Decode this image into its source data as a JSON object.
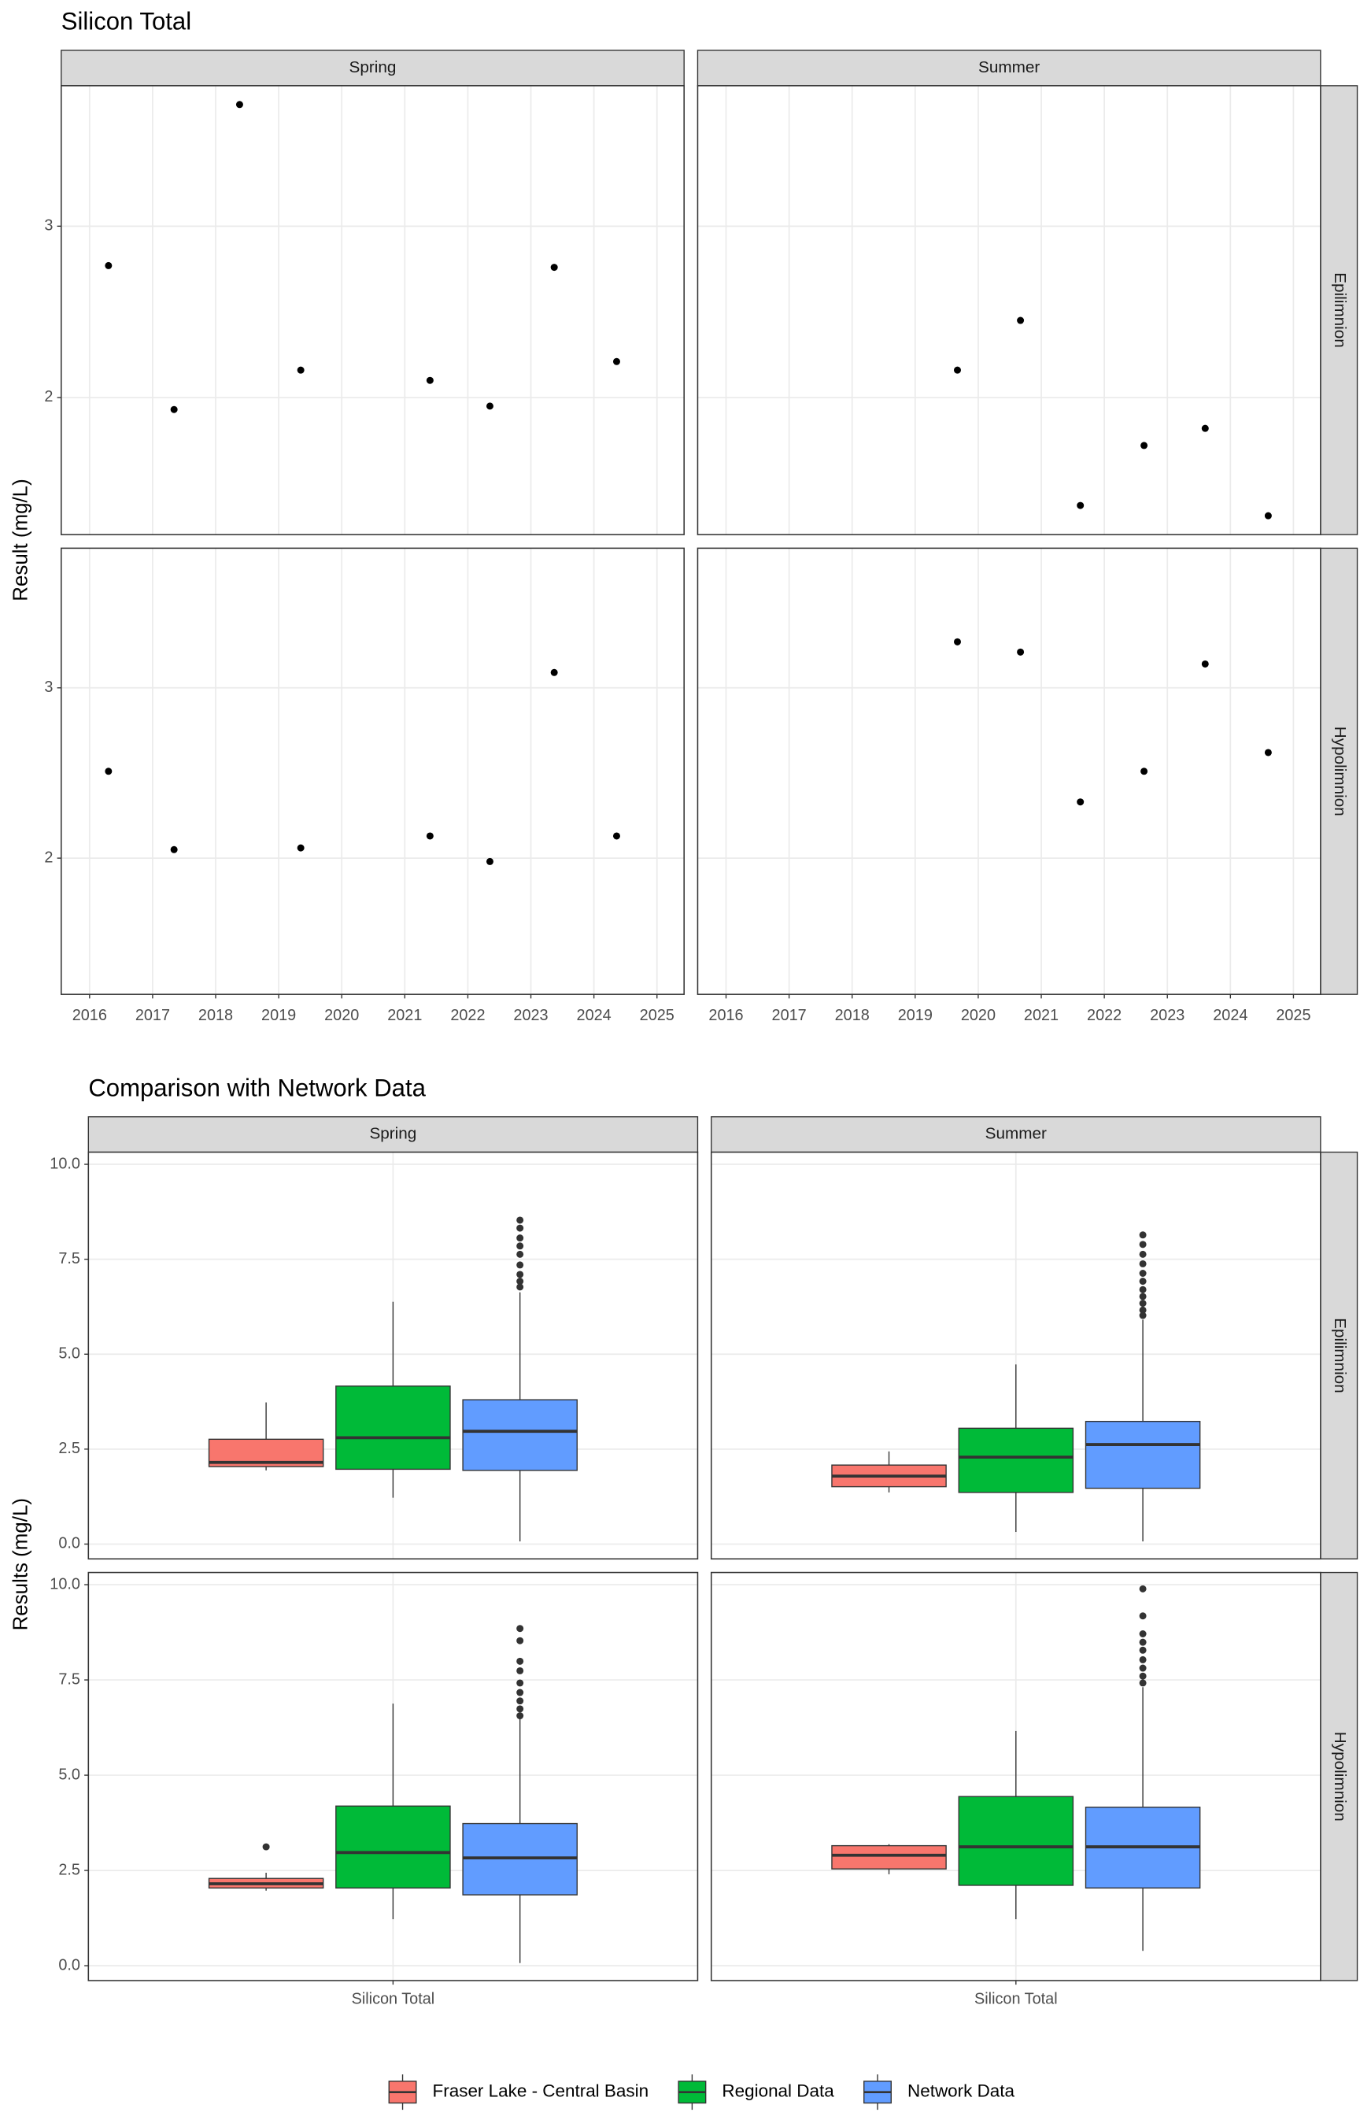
{
  "chart_data": [
    {
      "type": "scatter",
      "title": "Silicon Total",
      "y_label": "Result (mg/L)",
      "columns": [
        "Spring",
        "Summer"
      ],
      "rows": [
        "Epilimnion",
        "Hypolimnion"
      ],
      "color": "#000000",
      "xlim": [
        2015.55,
        2025.43
      ],
      "xticks": [
        2016,
        2017,
        2018,
        2019,
        2020,
        2021,
        2022,
        2023,
        2024,
        2025
      ],
      "ylim": [
        1.2,
        3.82
      ],
      "yticks": [
        2,
        3
      ],
      "grid": true,
      "panels": [
        {
          "x": [
            2016.3,
            2017.34,
            2018.38,
            2019.35,
            2021.4,
            2022.35,
            2023.37,
            2024.36
          ],
          "values": [
            2.77,
            1.93,
            3.71,
            2.16,
            2.1,
            1.95,
            2.76,
            2.21
          ]
        },
        {
          "x": [
            2019.67,
            2020.67,
            2021.62,
            2022.63,
            2023.6,
            2024.6
          ],
          "values": [
            2.16,
            2.45,
            1.37,
            1.72,
            1.82,
            1.31
          ]
        },
        {
          "x": [
            2016.3,
            2017.34,
            2019.35,
            2021.4,
            2022.35,
            2023.37,
            2024.36
          ],
          "values": [
            2.51,
            2.05,
            2.06,
            2.13,
            1.98,
            3.09,
            2.13
          ]
        },
        {
          "x": [
            2019.67,
            2020.67,
            2021.62,
            2022.63,
            2023.6,
            2024.6
          ],
          "values": [
            3.27,
            3.21,
            2.33,
            2.51,
            3.14,
            2.62
          ]
        }
      ]
    },
    {
      "type": "box",
      "title": "Comparison with Network Data",
      "y_label": "Results (mg/L)",
      "columns": [
        "Spring",
        "Summer"
      ],
      "rows": [
        "Epilimnion",
        "Hypolimnion"
      ],
      "categories": [
        "Silicon Total"
      ],
      "legend": "bottom",
      "ylim": [
        -0.39,
        10.32
      ],
      "grid": true,
      "yticks": [
        {
          "value": 0,
          "label": "0.0"
        },
        {
          "value": 2.5,
          "label": "2.5"
        },
        {
          "value": 5,
          "label": "5.0"
        },
        {
          "value": 7.5,
          "label": "7.5"
        },
        {
          "value": 10,
          "label": "10.0"
        }
      ],
      "series": [
        {
          "name": "Fraser Lake - Central Basin",
          "color": "#F8766D",
          "boxes": [
            {
              "low": 1.94,
              "q1": 2.04,
              "median": 2.15,
              "q3": 2.76,
              "high": 3.73,
              "outliers": []
            },
            {
              "low": 1.36,
              "q1": 1.51,
              "median": 1.79,
              "q3": 2.08,
              "high": 2.44,
              "outliers": []
            },
            {
              "low": 1.97,
              "q1": 2.04,
              "median": 2.15,
              "q3": 2.29,
              "high": 2.44,
              "outliers": [
                3.12
              ]
            },
            {
              "low": 2.4,
              "q1": 2.54,
              "median": 2.9,
              "q3": 3.15,
              "high": 3.19,
              "outliers": []
            }
          ]
        },
        {
          "name": "Regional Data",
          "color": "#00BA38",
          "boxes": [
            {
              "low": 1.22,
              "q1": 1.97,
              "median": 2.8,
              "q3": 4.16,
              "high": 6.38,
              "outliers": []
            },
            {
              "low": 0.32,
              "q1": 1.36,
              "median": 2.29,
              "q3": 3.05,
              "high": 4.73,
              "outliers": []
            },
            {
              "low": 1.22,
              "q1": 2.04,
              "median": 2.97,
              "q3": 4.19,
              "high": 6.88,
              "outliers": []
            },
            {
              "low": 1.22,
              "q1": 2.11,
              "median": 3.12,
              "q3": 4.44,
              "high": 6.16,
              "outliers": []
            }
          ]
        },
        {
          "name": "Network Data",
          "color": "#619CFF",
          "boxes": [
            {
              "low": 0.07,
              "q1": 1.94,
              "median": 2.97,
              "q3": 3.8,
              "high": 6.63,
              "outliers": [
                8.53,
                8.32,
                8.06,
                7.85,
                7.63,
                7.35,
                7.1,
                6.92,
                6.77
              ]
            },
            {
              "low": 0.07,
              "q1": 1.47,
              "median": 2.62,
              "q3": 3.23,
              "high": 5.91,
              "outliers": [
                8.14,
                7.89,
                7.63,
                7.38,
                7.13,
                6.92,
                6.7,
                6.52,
                6.34,
                6.16,
                6.02
              ]
            },
            {
              "low": 0.07,
              "q1": 1.86,
              "median": 2.83,
              "q3": 3.73,
              "high": 6.49,
              "outliers": [
                8.85,
                8.53,
                7.99,
                7.74,
                7.42,
                7.17,
                6.95,
                6.74,
                6.56
              ]
            },
            {
              "low": 0.39,
              "q1": 2.04,
              "median": 3.12,
              "q3": 4.16,
              "high": 7.31,
              "outliers": [
                9.89,
                9.18,
                8.71,
                8.49,
                8.28,
                8.03,
                7.81,
                7.6,
                7.42
              ]
            }
          ]
        }
      ]
    }
  ]
}
